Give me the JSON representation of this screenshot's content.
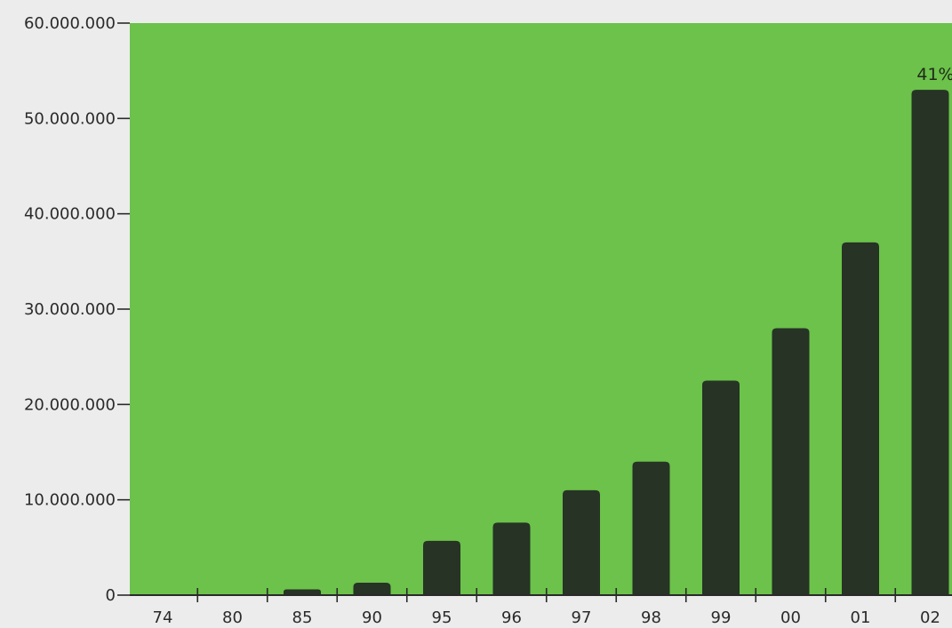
{
  "chart_data": {
    "type": "bar",
    "categories": [
      "74",
      "80",
      "85",
      "90",
      "95",
      "96",
      "97",
      "98",
      "99",
      "00",
      "01",
      "02"
    ],
    "values": [
      0,
      0,
      600000,
      1300000,
      5700000,
      7600000,
      11000000,
      14000000,
      22500000,
      28000000,
      37000000,
      53000000
    ],
    "y_ticks": [
      "0",
      "10.000.000",
      "20.000.000",
      "30.000.000",
      "40.000.000",
      "50.000.000",
      "60.000.000"
    ],
    "y_tick_values": [
      0,
      10000000,
      20000000,
      30000000,
      40000000,
      50000000,
      60000000
    ],
    "ylim": [
      0,
      60000000
    ],
    "annotations": [
      {
        "category": "02",
        "text": "41%"
      }
    ],
    "colors": {
      "plot_background": "#6cc24a",
      "bar": "#263325",
      "page_background": "#ececec",
      "axis": "#2a2a2a"
    },
    "grid": false
  }
}
